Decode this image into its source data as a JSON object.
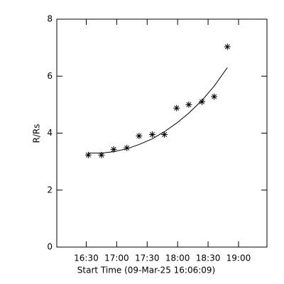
{
  "chart_data": {
    "type": "scatter",
    "xlabel": "Start Time (09-Mar-25 16:06:09)",
    "ylabel": "R/Rs",
    "xlim": [
      961,
      1168
    ],
    "ylim": [
      0,
      8
    ],
    "xticks": [
      {
        "value": 990,
        "label": "16:30"
      },
      {
        "value": 1020,
        "label": "17:00"
      },
      {
        "value": 1050,
        "label": "17:30"
      },
      {
        "value": 1080,
        "label": "18:00"
      },
      {
        "value": 1110,
        "label": "18:30"
      },
      {
        "value": 1140,
        "label": "19:00"
      }
    ],
    "yticks": [
      0,
      2,
      4,
      6,
      8
    ],
    "color": "#000000",
    "series": [
      {
        "mode": "markers",
        "x": [
          992,
          1005,
          1017,
          1030,
          1042,
          1055,
          1067,
          1079,
          1091,
          1104,
          1116,
          1129
        ],
        "values": [
          3.23,
          3.23,
          3.43,
          3.48,
          3.9,
          3.95,
          3.95,
          4.88,
          5.0,
          5.1,
          5.28,
          7.03
        ]
      },
      {
        "mode": "line",
        "x": [
          992,
          1005,
          1017,
          1030,
          1042,
          1055,
          1067,
          1079,
          1091,
          1104,
          1116,
          1129
        ],
        "values": [
          3.3,
          3.3,
          3.35,
          3.45,
          3.6,
          3.8,
          4.05,
          4.35,
          4.7,
          5.15,
          5.65,
          6.3
        ]
      }
    ]
  }
}
